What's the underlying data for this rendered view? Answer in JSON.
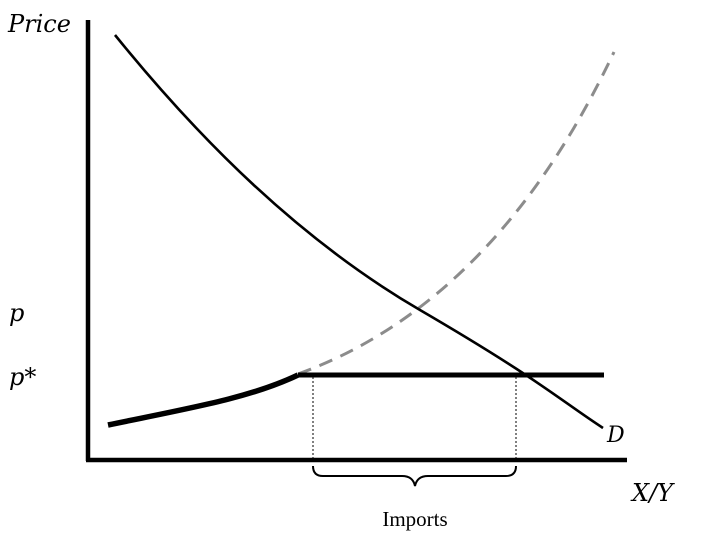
{
  "axes": {
    "y_label": "Price",
    "x_label": "X/Y"
  },
  "price_levels": {
    "p_label": "p",
    "p_star_label": "p*"
  },
  "curves": {
    "demand_label": "D"
  },
  "annotations": {
    "imports_label": "Imports"
  },
  "colors": {
    "axis": "#000000",
    "demand": "#000000",
    "supply_dashed": "#8c8c8c",
    "supply_solid": "#000000"
  }
}
